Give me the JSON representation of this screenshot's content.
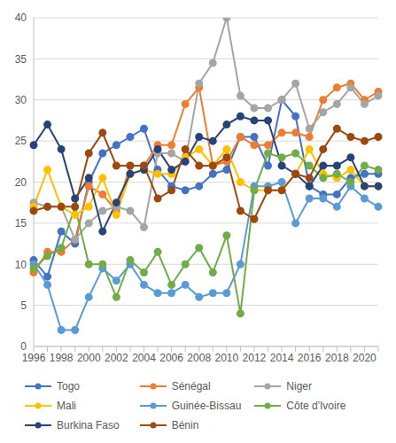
{
  "chart_data": {
    "type": "line",
    "categories": [
      "1996",
      null,
      "1998",
      null,
      "2000",
      null,
      "2002",
      null,
      "2004",
      null,
      "2006",
      null,
      "2008",
      null,
      "2010",
      null,
      "2012",
      null,
      "2014",
      null,
      "2016",
      null,
      "2018",
      null,
      "2020",
      null
    ],
    "ylim": [
      0,
      40
    ],
    "yticks": [
      0,
      5,
      10,
      15,
      20,
      25,
      30,
      35,
      40
    ],
    "grid": true,
    "legend": "bottom",
    "marker": "circle",
    "series": [
      {
        "name": "Togo",
        "color": "#4472C4",
        "values": [
          10.5,
          8.5,
          14,
          12.5,
          20,
          23.5,
          24.5,
          25.5,
          26.5,
          21.5,
          19.5,
          19,
          19.5,
          21,
          21.5,
          25.5,
          25.5,
          22,
          30,
          28,
          19.5,
          18.5,
          18.5,
          20.5,
          21,
          21
        ]
      },
      {
        "name": "Sénégal",
        "color": "#ED7D31",
        "values": [
          9,
          11.5,
          11.5,
          13,
          19.5,
          18.5,
          16.5,
          22,
          22,
          24.5,
          24.5,
          29.5,
          31.5,
          22,
          22.5,
          25.5,
          24.5,
          24.5,
          26,
          26,
          25.5,
          30,
          31.5,
          32,
          30,
          31
        ]
      },
      {
        "name": "Niger",
        "color": "#A5A5A5",
        "values": [
          17.5,
          17,
          17,
          13,
          15,
          16.5,
          17,
          16.5,
          14.5,
          23.5,
          23.5,
          22.5,
          32,
          34.5,
          40,
          30.5,
          29,
          29,
          30,
          32,
          26.5,
          28.5,
          29.5,
          31.5,
          29.5,
          30.5
        ]
      },
      {
        "name": "Mali",
        "color": "#FFC000",
        "values": [
          17,
          21.5,
          17,
          16,
          17,
          20.5,
          16,
          21,
          21.5,
          21,
          21,
          23,
          24,
          22,
          24,
          20,
          19,
          19,
          19,
          21,
          24,
          21,
          20.5,
          21.5,
          19.5,
          19.5
        ]
      },
      {
        "name": "Guinée-Bissau",
        "color": "#5B9BD5",
        "values": [
          10,
          7.5,
          2,
          2,
          6,
          9.5,
          8,
          10,
          7.5,
          6.5,
          6.5,
          7.5,
          6,
          6.5,
          6.5,
          10,
          19.5,
          19.5,
          20,
          15,
          18,
          18,
          17,
          19.5,
          18,
          17
        ]
      },
      {
        "name": "Côte d'Ivoire",
        "color": "#70AD47",
        "values": [
          9.5,
          11,
          12,
          17,
          10,
          10,
          6,
          10.5,
          9,
          11.5,
          7.5,
          10,
          12,
          9,
          13.5,
          4,
          19,
          23.5,
          23,
          23.5,
          22,
          20.5,
          21,
          20,
          22,
          21.5
        ]
      },
      {
        "name": "Burkina Faso",
        "color": "#264478",
        "values": [
          24.5,
          27,
          24,
          18,
          20.5,
          14,
          17.5,
          21,
          21.5,
          24,
          21.5,
          22.5,
          25.5,
          25,
          27,
          28,
          27.5,
          27.5,
          22,
          21,
          19.5,
          22,
          22,
          23,
          19.5,
          19.5
        ]
      },
      {
        "name": "Bénin",
        "color": "#9E480E",
        "values": [
          16.5,
          17,
          17,
          17,
          23.5,
          26,
          22,
          22,
          22,
          18,
          19,
          24,
          22,
          22,
          23,
          16.5,
          15.5,
          19,
          19,
          21,
          20.5,
          24,
          26.5,
          25.5,
          25,
          25.5
        ]
      }
    ]
  }
}
